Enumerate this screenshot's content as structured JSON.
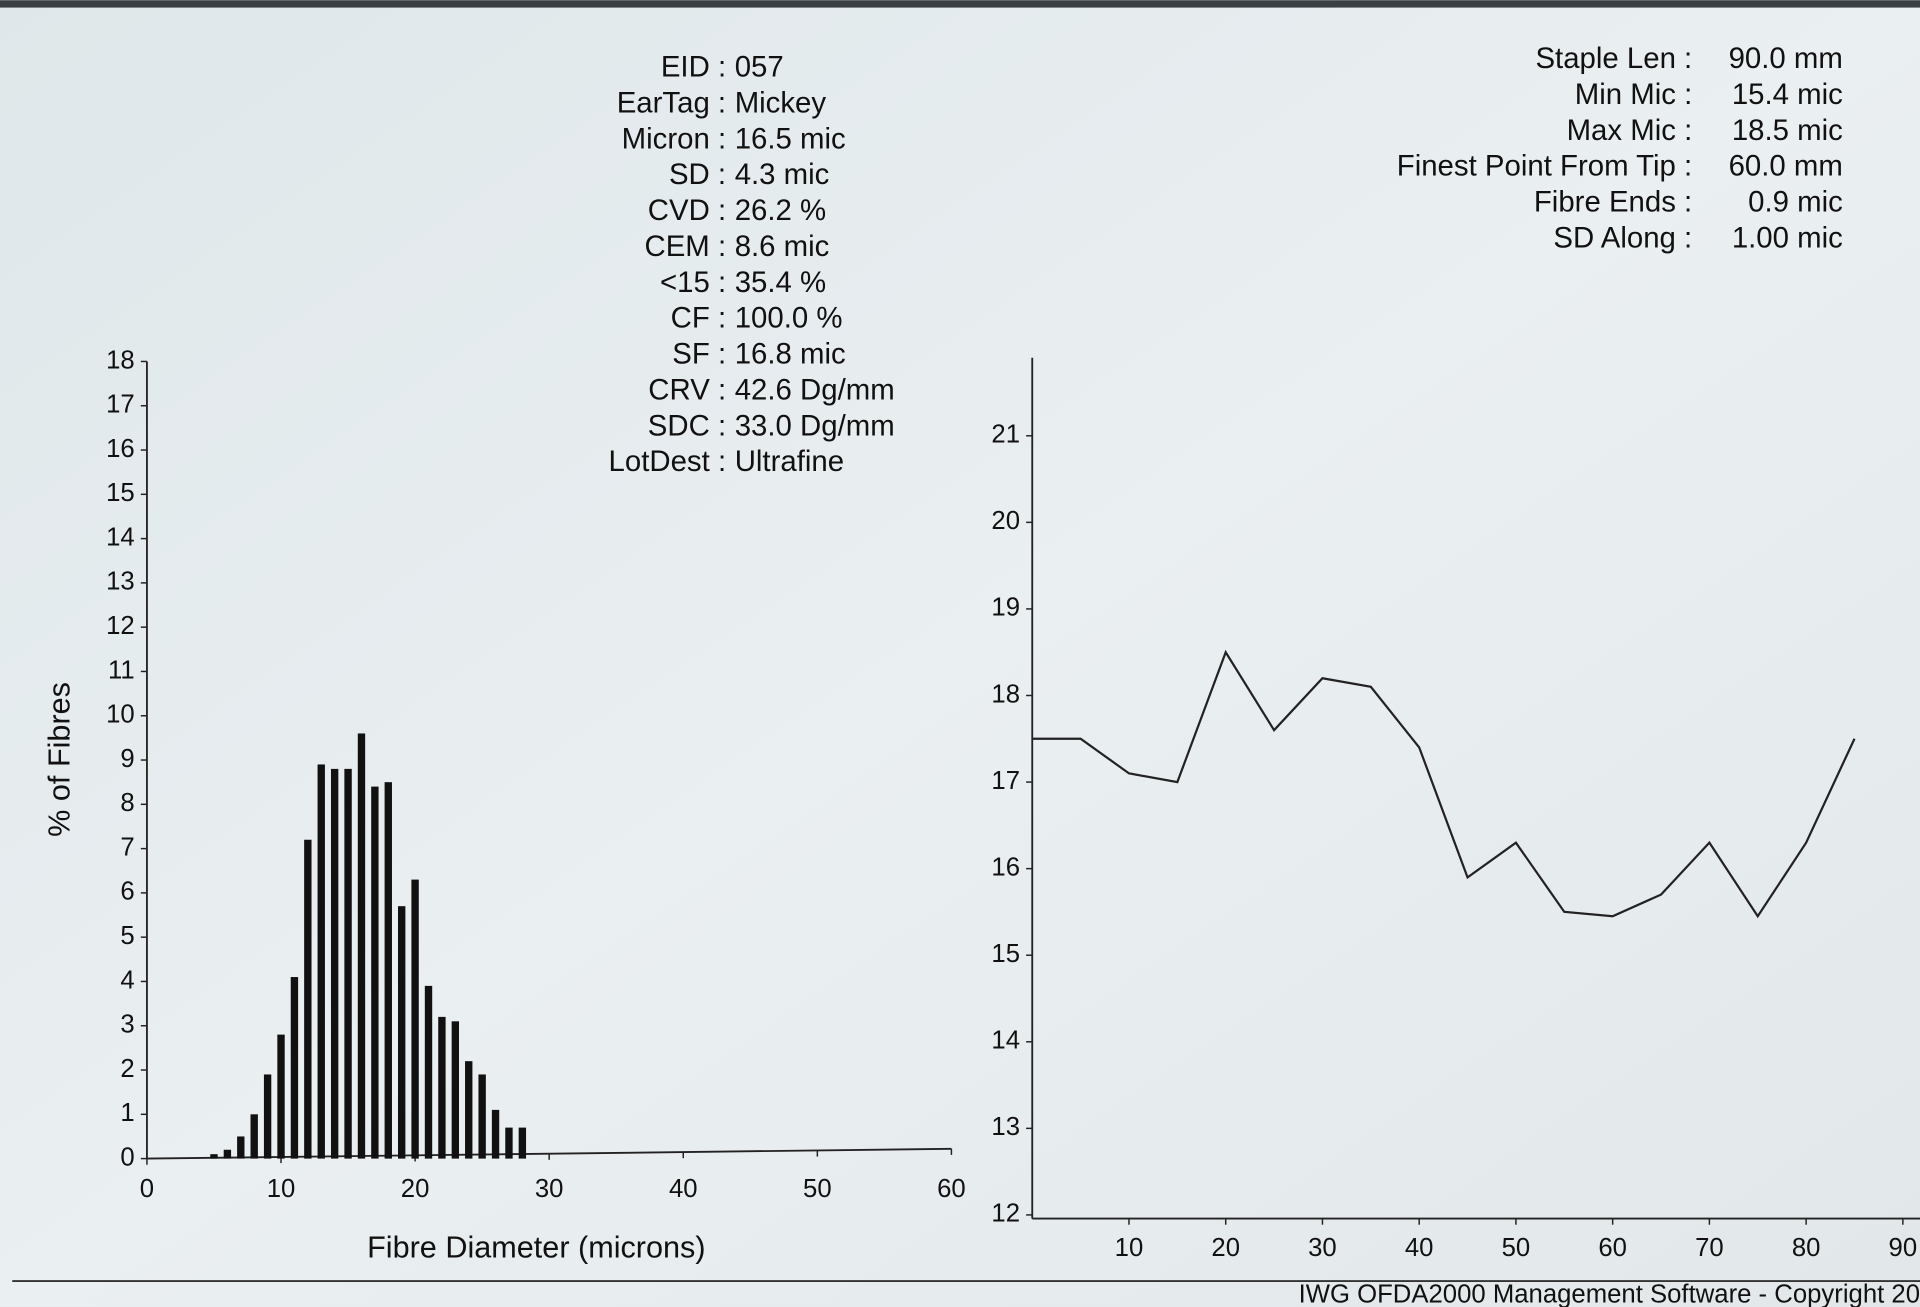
{
  "stats_left": [
    {
      "label": "EID :",
      "value": "057"
    },
    {
      "label": "EarTag :",
      "value": "Mickey"
    },
    {
      "label": "Micron :",
      "value": "16.5 mic"
    },
    {
      "label": "SD :",
      "value": "4.3 mic"
    },
    {
      "label": "CVD :",
      "value": "26.2 %"
    },
    {
      "label": "CEM :",
      "value": "8.6 mic"
    },
    {
      "label": "<15 :",
      "value": "35.4 %"
    },
    {
      "label": "CF :",
      "value": "100.0 %"
    },
    {
      "label": "SF :",
      "value": "16.8 mic"
    },
    {
      "label": "CRV :",
      "value": "42.6 Dg/mm"
    },
    {
      "label": "SDC :",
      "value": "33.0 Dg/mm"
    },
    {
      "label": "LotDest :",
      "value": "Ultrafine"
    }
  ],
  "stats_right": [
    {
      "label": "Staple Len :",
      "value": "90.0 mm"
    },
    {
      "label": "Min Mic :",
      "value": "15.4 mic"
    },
    {
      "label": "Max Mic :",
      "value": "18.5 mic"
    },
    {
      "label": "Finest Point From Tip :",
      "value": "60.0 mm"
    },
    {
      "label": "Fibre Ends :",
      "value": "0.9 mic"
    },
    {
      "label": "SD Along :",
      "value": "1.00 mic"
    }
  ],
  "chart_data": [
    {
      "type": "bar",
      "x_label": "Fibre Diameter (microns)",
      "y_label": "% of Fibres",
      "x": [
        5,
        6,
        7,
        8,
        9,
        10,
        11,
        12,
        13,
        14,
        15,
        16,
        17,
        18,
        19,
        20,
        21,
        22,
        23,
        24,
        25,
        26,
        27,
        28
      ],
      "values": [
        0.1,
        0.2,
        0.5,
        1.0,
        1.9,
        2.8,
        4.1,
        7.2,
        8.9,
        8.8,
        8.8,
        9.6,
        8.4,
        8.5,
        5.7,
        6.3,
        3.9,
        3.2,
        3.1,
        2.2,
        1.9,
        1.1,
        0.7,
        0.7
      ],
      "color": "#111111",
      "xlim": [
        0,
        60
      ],
      "xticks": [
        0,
        10,
        20,
        30,
        40,
        50,
        60
      ],
      "ylim": [
        0,
        18
      ],
      "yticks": [
        0,
        1,
        2,
        3,
        4,
        5,
        6,
        7,
        8,
        9,
        10,
        11,
        12,
        13,
        14,
        15,
        16,
        17,
        18
      ]
    },
    {
      "type": "line",
      "x": [
        0,
        5,
        10,
        15,
        20,
        25,
        30,
        35,
        40,
        45,
        50,
        55,
        60,
        65,
        70,
        75,
        80,
        85
      ],
      "values": [
        17.5,
        17.5,
        17.1,
        17.0,
        18.5,
        17.6,
        18.2,
        18.1,
        17.4,
        15.9,
        16.3,
        15.5,
        15.45,
        15.7,
        16.3,
        15.45,
        16.3,
        17.5
      ],
      "color": "#222222",
      "xlim": [
        0,
        90
      ],
      "xticks": [
        10,
        20,
        30,
        40,
        50,
        60,
        70,
        80,
        90
      ],
      "ylim": [
        12,
        22
      ],
      "yticks": [
        12,
        13,
        14,
        15,
        16,
        17,
        18,
        19,
        20,
        21
      ]
    }
  ],
  "footer": "IWG OFDA2000 Management Software - Copyright 20"
}
